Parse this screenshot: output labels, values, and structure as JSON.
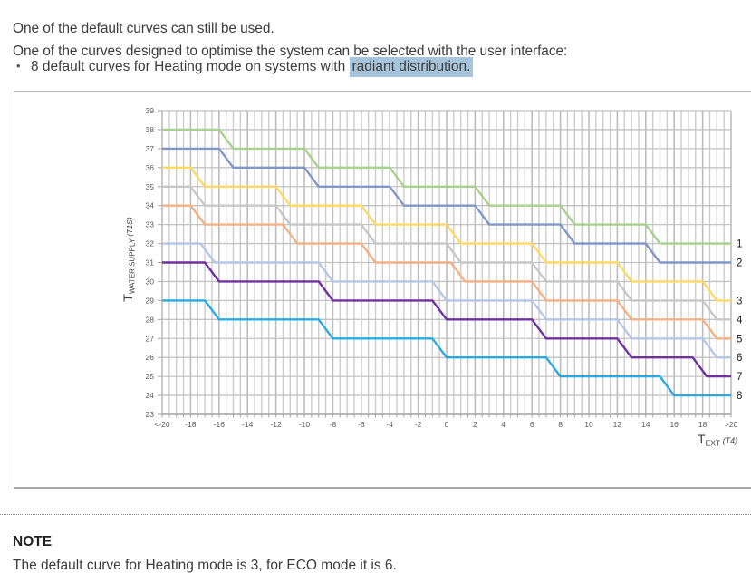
{
  "intro": {
    "line1": "One of the default curves can still be used.",
    "line2": "One of the curves designed to optimise the system can be selected with the user interface:"
  },
  "bullet": {
    "marker": "•",
    "text_before": "8 default curves for Heating mode on systems with ",
    "highlight": "radiant distribution.",
    "highlight_color": "#a7c4dd"
  },
  "note": {
    "title": "NOTE",
    "body": "The default curve for Heating mode is 3, for ECO mode it is 6."
  },
  "chart_data": {
    "type": "line",
    "title": "",
    "grid": true,
    "x_axis": {
      "label_main": "T",
      "label_sub": "EXT",
      "label_italic": "(T4)",
      "min": -20,
      "max": 20,
      "tick_step": 2,
      "tick_labels": [
        "<-20",
        "-18",
        "-16",
        "-14",
        "-12",
        "-10",
        "-8",
        "-6",
        "-4",
        "-2",
        "0",
        "2",
        "4",
        "6",
        "8",
        "10",
        "12",
        "14",
        "16",
        "18",
        ">20"
      ]
    },
    "y_axis": {
      "label_main": "T",
      "label_sub": "WATER SUPPLY",
      "label_italic": "(T1S)",
      "min": 23,
      "max": 39,
      "tick_step": 1,
      "ticks": [
        23,
        24,
        25,
        26,
        27,
        28,
        29,
        30,
        31,
        32,
        33,
        34,
        35,
        36,
        37,
        38,
        39
      ]
    },
    "drop_width": 1,
    "series": [
      {
        "name": "1",
        "color": "#a9d18e",
        "start": 38,
        "end": 32,
        "drops": [
          -16,
          -10,
          -4,
          2,
          8,
          14
        ]
      },
      {
        "name": "2",
        "color": "#8196c9",
        "start": 37,
        "end": 31,
        "drops": [
          -16,
          -10,
          -4,
          2,
          8,
          14
        ]
      },
      {
        "name": "3",
        "color": "#ffd964",
        "start": 36,
        "end": 29,
        "drops": [
          -18,
          -12,
          -6,
          0,
          6,
          12,
          18
        ]
      },
      {
        "name": "4",
        "color": "#c7c7c7",
        "start": 35,
        "end": 28,
        "drops": [
          -18,
          -12,
          -6,
          0,
          6,
          12,
          18
        ]
      },
      {
        "name": "5",
        "color": "#f4b183",
        "start": 34,
        "end": 27,
        "drops": [
          -18,
          -11.5,
          -6,
          0.3,
          6,
          12,
          18
        ]
      },
      {
        "name": "6",
        "color": "#b4c7e7",
        "start": 32,
        "end": 26,
        "drops": [
          -17.3,
          -9,
          -1,
          6,
          12,
          18
        ]
      },
      {
        "name": "7",
        "color": "#7030a0",
        "start": 31,
        "end": 25,
        "drops": [
          -17,
          -9,
          -1,
          6,
          12,
          17.3
        ]
      },
      {
        "name": "8",
        "color": "#29abe2",
        "start": 29,
        "end": 24,
        "drops": [
          -17,
          -9,
          -1,
          7,
          15
        ]
      }
    ],
    "colors": {
      "grid_minor": "#cdcdcd",
      "grid_major": "#bcbcbc",
      "grid_horizontal": "#c2c2c2",
      "axis": "#a6a6a6",
      "tick_text": "#595959",
      "axis_title_text": "#404040",
      "curve_label_text": "#1a1a1a"
    }
  }
}
